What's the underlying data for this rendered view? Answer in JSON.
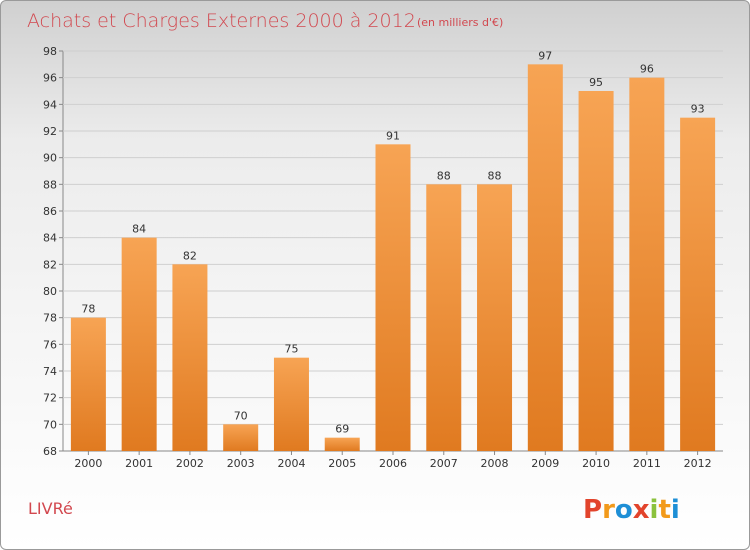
{
  "chart_data": {
    "type": "bar",
    "title": "Achats et Charges Externes 2000 à 2012",
    "subtitle": "(en milliers d'€)",
    "categories": [
      "2000",
      "2001",
      "2002",
      "2003",
      "2004",
      "2005",
      "2006",
      "2007",
      "2008",
      "2009",
      "2010",
      "2011",
      "2012"
    ],
    "values": [
      78,
      84,
      82,
      70,
      75,
      69,
      91,
      88,
      88,
      97,
      95,
      96,
      93
    ],
    "ylim": [
      68,
      98
    ],
    "yticks": [
      68,
      70,
      72,
      74,
      76,
      78,
      80,
      82,
      84,
      86,
      88,
      90,
      92,
      94,
      96,
      98
    ],
    "grid": true,
    "bar_color": "#f0903a"
  },
  "footer": {
    "town": "LIVRé",
    "logo_letters": [
      "P",
      "r",
      "o",
      "x",
      "i",
      "t",
      "i"
    ],
    "logo_colors": [
      "#e2442c",
      "#f29a1b",
      "#1e8fd6",
      "#e2442c",
      "#8bc23d",
      "#f29a1b",
      "#1e8fd6"
    ]
  }
}
